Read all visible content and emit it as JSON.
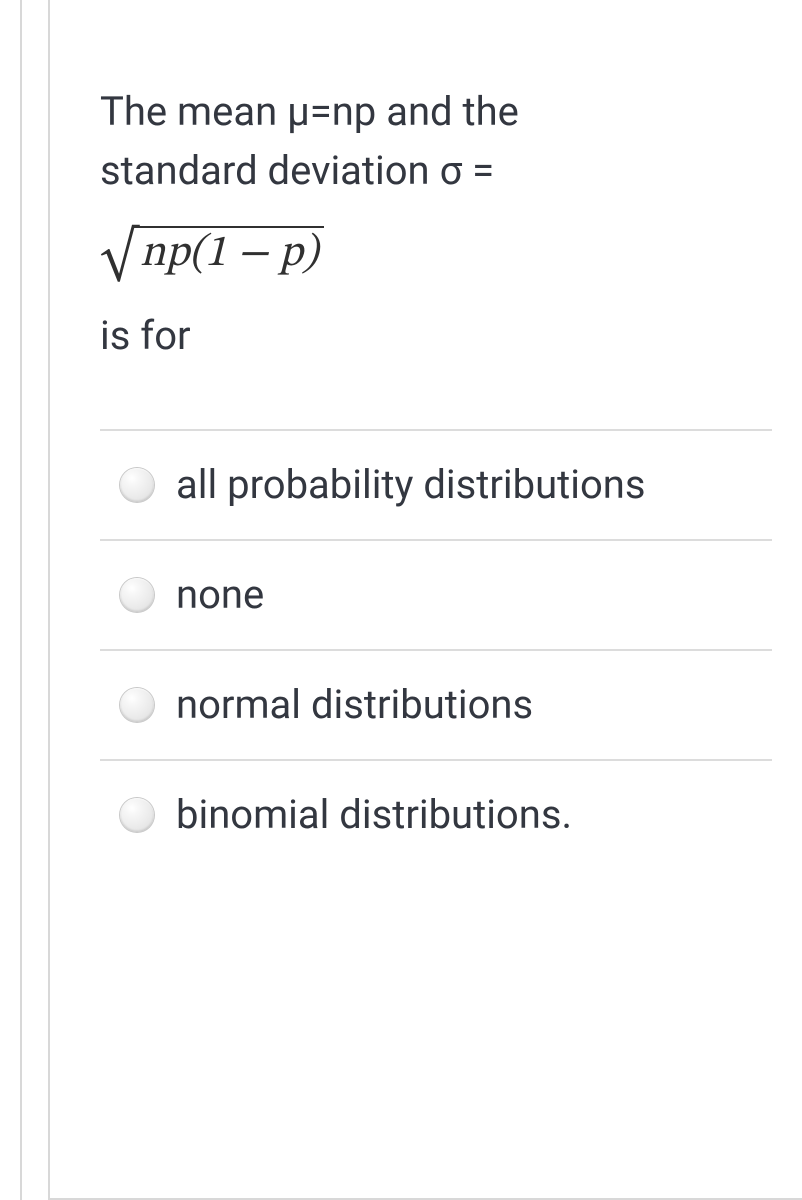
{
  "question": {
    "line1": "The mean μ=np and the",
    "line2": "standard deviation  σ =",
    "formula_sqrt_content": "np(1 − p)",
    "is_for": "is for"
  },
  "options": [
    {
      "label": "all probability distributions",
      "selected": false
    },
    {
      "label": "none",
      "selected": false
    },
    {
      "label": "normal distributions",
      "selected": false
    },
    {
      "label": "binomial distributions.",
      "selected": false
    }
  ],
  "styling": {
    "text_color": "#333740",
    "border_color": "#d8d8d8",
    "divider_color": "#dcdcdc",
    "background_color": "#ffffff",
    "font_size_main": 40,
    "radio_size": 34
  }
}
